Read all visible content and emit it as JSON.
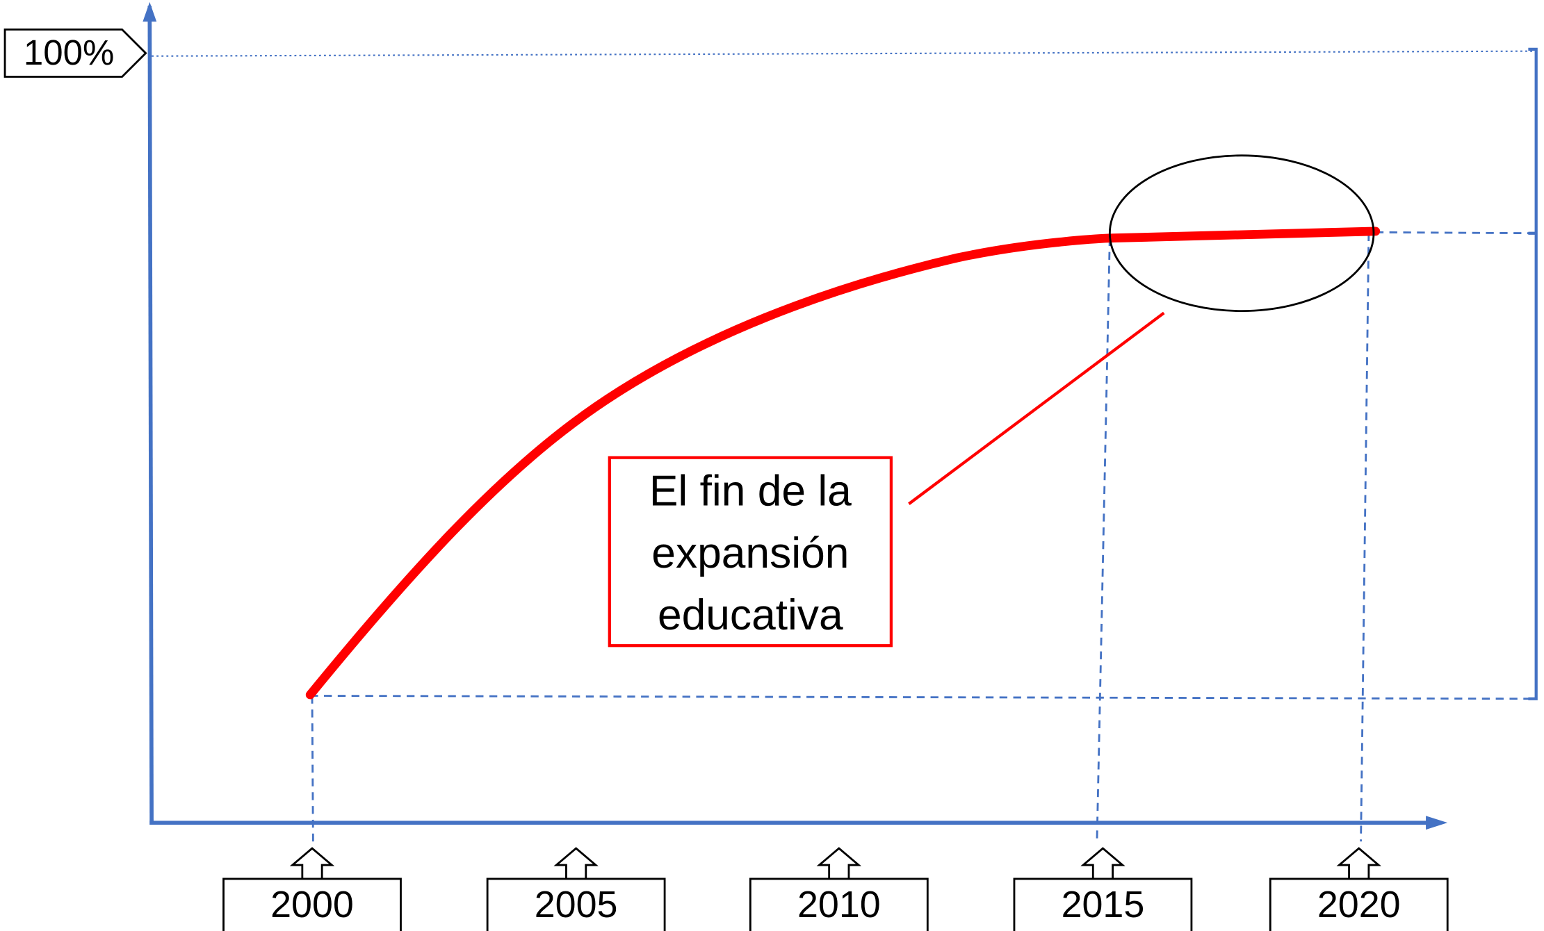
{
  "y_axis_label": "100%",
  "x_labels": [
    "2000",
    "2005",
    "2010",
    "2015",
    "2020"
  ],
  "annotation": [
    "El fin de la",
    "expansión",
    "educativa"
  ]
}
